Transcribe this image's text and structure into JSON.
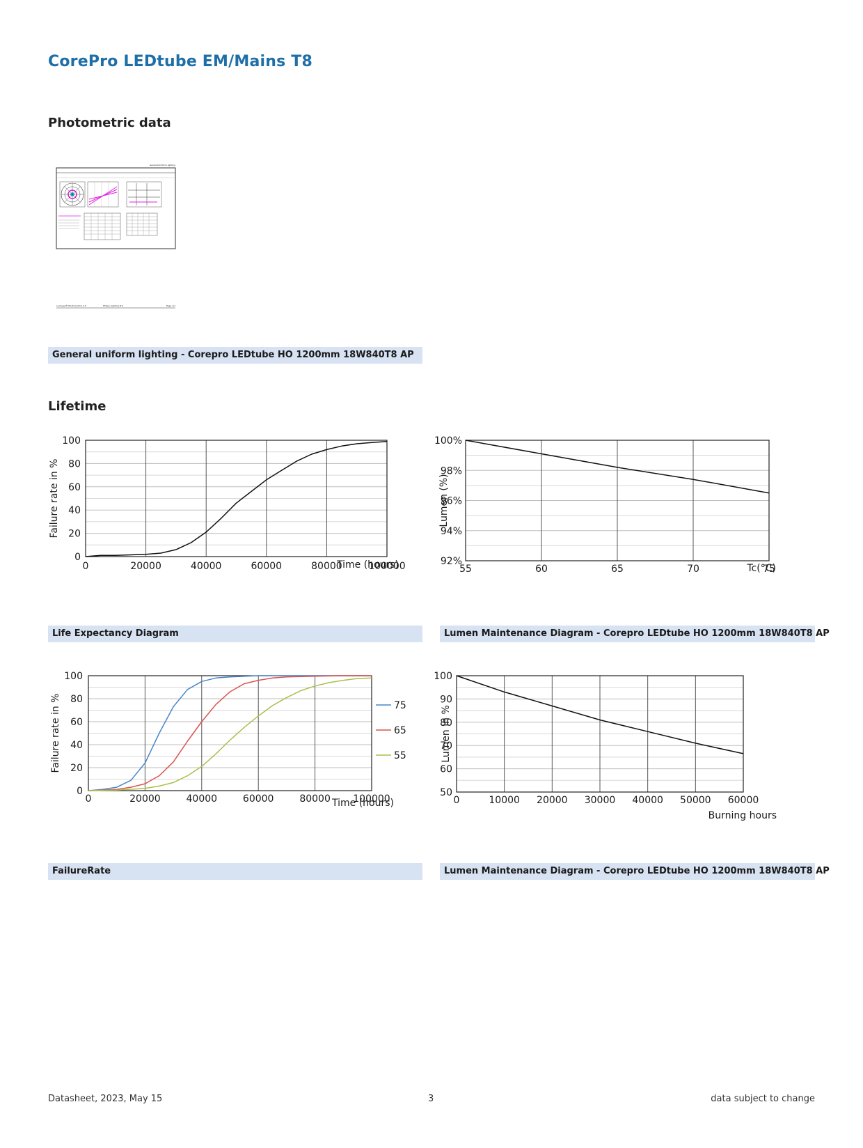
{
  "header": {
    "title": "CorePro LEDtube EM/Mains T8"
  },
  "sections": {
    "photometric": "Photometric data",
    "lifetime": "Lifetime"
  },
  "photometric_thumbnail": {
    "top_label": "General/Uniform lighting",
    "footer_left": "Lumiweb® Photometrics 4.5",
    "footer_mid": "Philips Lighting B.V.",
    "footer_right": "Page 1/1"
  },
  "captions": {
    "photometric": "General uniform lighting - Corepro LEDtube HO 1200mm 18W840T8 AP",
    "life_expectancy": "Life Expectancy Diagram",
    "lumen_maint_tc": "Lumen Maintenance Diagram - Corepro LEDtube HO 1200mm 18W840T8 AP",
    "failure_rate": "FailureRate",
    "lumen_maint_hours": "Lumen Maintenance Diagram - Corepro LEDtube HO 1200mm 18W840T8 AP"
  },
  "footer": {
    "left": "Datasheet, 2023, May 15",
    "center": "3",
    "right": "data subject to change"
  },
  "colors": {
    "title": "#1e6fa8",
    "caption_bg": "#d7e2f2",
    "series_75": "#4a86c8",
    "series_65": "#d9534f",
    "series_55": "#a9c04a"
  },
  "chart_data": [
    {
      "id": "life_expectancy",
      "type": "line",
      "title": "",
      "xlabel": "Time (hours)",
      "ylabel": "Failure rate in %",
      "xlim": [
        0,
        100000
      ],
      "ylim": [
        0,
        100
      ],
      "xticks": [
        0,
        20000,
        40000,
        60000,
        80000,
        100000
      ],
      "yticks": [
        0,
        20,
        40,
        60,
        80,
        100
      ],
      "grid": true,
      "series": [
        {
          "x": [
            0,
            5000,
            10000,
            15000,
            20000,
            25000,
            30000,
            35000,
            40000,
            45000,
            50000,
            55000,
            60000,
            65000,
            70000,
            75000,
            80000,
            85000,
            90000,
            95000,
            100000
          ],
          "y": [
            0,
            1,
            1,
            1.5,
            2,
            3,
            6,
            12,
            21,
            33,
            46,
            56,
            66,
            74,
            82,
            88,
            92,
            95,
            97,
            98,
            99
          ]
        }
      ]
    },
    {
      "id": "lumen_maintenance_tc",
      "type": "line",
      "title": "",
      "xlabel": "Tc(°C)",
      "ylabel": "Lumen (%)",
      "xlim": [
        55,
        75
      ],
      "ylim": [
        92,
        100
      ],
      "xticks": [
        55,
        60,
        65,
        70,
        75
      ],
      "yticks": [
        92,
        94,
        96,
        98,
        100
      ],
      "ytick_labels": [
        "92%",
        "94%",
        "96%",
        "98%",
        "100%"
      ],
      "grid": true,
      "series": [
        {
          "x": [
            55,
            60,
            65,
            70,
            75
          ],
          "y": [
            100,
            99.1,
            98.2,
            97.4,
            96.5
          ]
        }
      ]
    },
    {
      "id": "failure_rate",
      "type": "line",
      "title": "",
      "xlabel": "Time (hours)",
      "ylabel": "Failure rate in %",
      "xlim": [
        0,
        100000
      ],
      "ylim": [
        0,
        100
      ],
      "xticks": [
        0,
        20000,
        40000,
        60000,
        80000,
        100000
      ],
      "yticks": [
        0,
        20,
        40,
        60,
        80,
        100
      ],
      "grid": true,
      "legend": "right",
      "series": [
        {
          "name": "75",
          "color": "#4a86c8",
          "x": [
            0,
            5000,
            10000,
            15000,
            20000,
            25000,
            30000,
            35000,
            40000,
            45000,
            50000,
            60000,
            100000
          ],
          "y": [
            0,
            1,
            3,
            9,
            24,
            50,
            73,
            88,
            95,
            98,
            99,
            100,
            100
          ]
        },
        {
          "name": "65",
          "color": "#d9534f",
          "x": [
            0,
            10000,
            15000,
            20000,
            25000,
            30000,
            35000,
            40000,
            45000,
            50000,
            55000,
            60000,
            65000,
            70000,
            80000,
            90000,
            100000
          ],
          "y": [
            0,
            1,
            3,
            6,
            13,
            25,
            43,
            60,
            75,
            86,
            93,
            96,
            98,
            99,
            99.5,
            100,
            100
          ]
        },
        {
          "name": "55",
          "color": "#a9c04a",
          "x": [
            0,
            10000,
            20000,
            25000,
            30000,
            35000,
            40000,
            45000,
            50000,
            55000,
            60000,
            65000,
            70000,
            75000,
            80000,
            85000,
            90000,
            95000,
            100000
          ],
          "y": [
            0,
            0.5,
            2,
            4,
            7,
            13,
            21,
            32,
            44,
            55,
            65,
            74,
            81,
            87,
            91,
            94,
            96,
            97.5,
            98
          ]
        }
      ]
    },
    {
      "id": "lumen_maintenance_hours",
      "type": "line",
      "title": "",
      "xlabel": "Burning hours",
      "ylabel": "Lumen in %",
      "xlim": [
        0,
        60000
      ],
      "ylim": [
        50,
        100
      ],
      "xticks": [
        0,
        10000,
        20000,
        30000,
        40000,
        50000,
        60000
      ],
      "yticks": [
        50,
        60,
        70,
        80,
        90,
        100
      ],
      "grid": true,
      "series": [
        {
          "x": [
            0,
            10000,
            20000,
            30000,
            40000,
            50000,
            60000
          ],
          "y": [
            100,
            93,
            87,
            81,
            76,
            71,
            66.5
          ]
        }
      ]
    }
  ]
}
